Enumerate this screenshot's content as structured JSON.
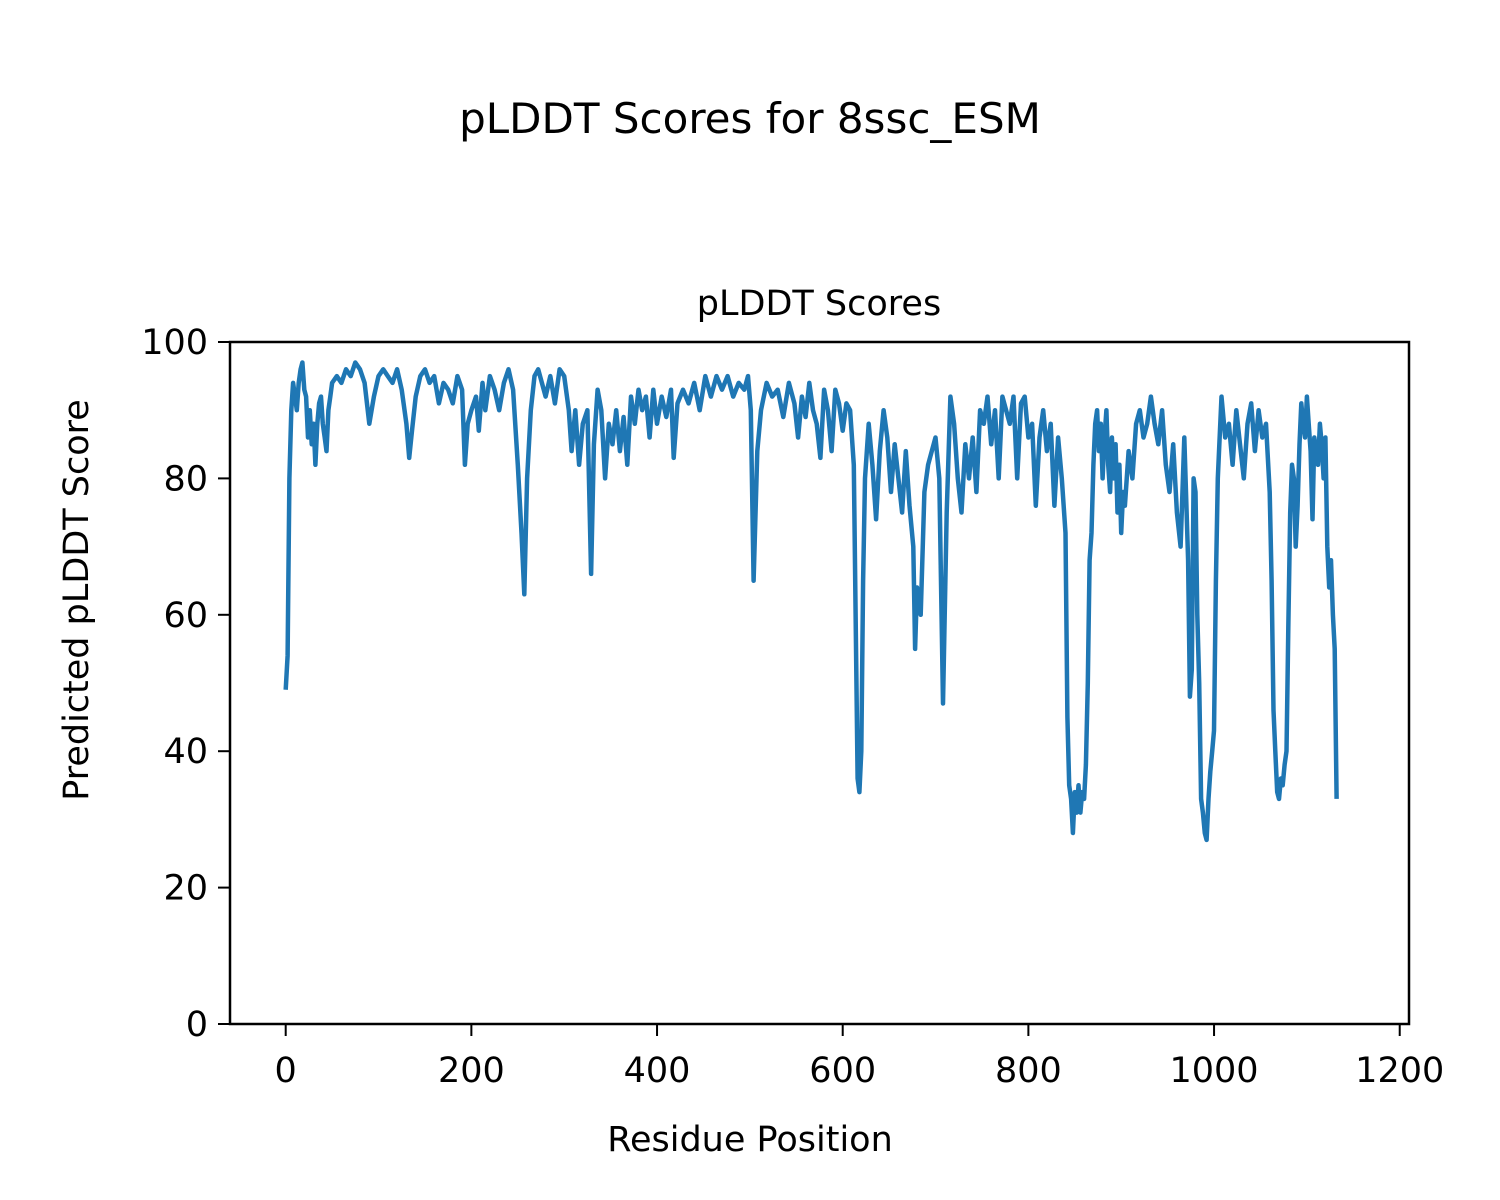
{
  "figure": {
    "suptitle": "pLDDT Scores for 8ssc_ESM"
  },
  "chart_data": {
    "type": "line",
    "title": "pLDDT Scores",
    "xlabel": "Residue Position",
    "ylabel": "Predicted pLDDT Score",
    "xlim": [
      -60,
      1210
    ],
    "ylim": [
      0,
      100
    ],
    "xticks": [
      0,
      200,
      400,
      600,
      800,
      1000,
      1200
    ],
    "yticks": [
      0,
      20,
      40,
      60,
      80,
      100
    ],
    "grid": false,
    "legend": "none",
    "series": [
      {
        "color": "#1f77b4",
        "points": [
          [
            0,
            49
          ],
          [
            2,
            54
          ],
          [
            4,
            80
          ],
          [
            6,
            90
          ],
          [
            8,
            94
          ],
          [
            10,
            92
          ],
          [
            12,
            90
          ],
          [
            14,
            94
          ],
          [
            16,
            96
          ],
          [
            18,
            97
          ],
          [
            20,
            93
          ],
          [
            22,
            92
          ],
          [
            24,
            86
          ],
          [
            26,
            90
          ],
          [
            28,
            85
          ],
          [
            30,
            88
          ],
          [
            32,
            82
          ],
          [
            34,
            88
          ],
          [
            36,
            91
          ],
          [
            38,
            92
          ],
          [
            40,
            88
          ],
          [
            42,
            86
          ],
          [
            44,
            84
          ],
          [
            46,
            90
          ],
          [
            48,
            92
          ],
          [
            50,
            94
          ],
          [
            55,
            95
          ],
          [
            60,
            94
          ],
          [
            65,
            96
          ],
          [
            70,
            95
          ],
          [
            75,
            97
          ],
          [
            80,
            96
          ],
          [
            85,
            94
          ],
          [
            90,
            88
          ],
          [
            95,
            92
          ],
          [
            100,
            95
          ],
          [
            105,
            96
          ],
          [
            110,
            95
          ],
          [
            115,
            94
          ],
          [
            120,
            96
          ],
          [
            125,
            93
          ],
          [
            130,
            88
          ],
          [
            133,
            83
          ],
          [
            136,
            87
          ],
          [
            140,
            92
          ],
          [
            145,
            95
          ],
          [
            150,
            96
          ],
          [
            155,
            94
          ],
          [
            160,
            95
          ],
          [
            165,
            91
          ],
          [
            170,
            94
          ],
          [
            175,
            93
          ],
          [
            180,
            91
          ],
          [
            185,
            95
          ],
          [
            190,
            93
          ],
          [
            193,
            82
          ],
          [
            196,
            88
          ],
          [
            200,
            90
          ],
          [
            205,
            92
          ],
          [
            208,
            87
          ],
          [
            212,
            94
          ],
          [
            215,
            90
          ],
          [
            220,
            95
          ],
          [
            225,
            93
          ],
          [
            230,
            90
          ],
          [
            235,
            94
          ],
          [
            240,
            96
          ],
          [
            245,
            93
          ],
          [
            250,
            82
          ],
          [
            254,
            72
          ],
          [
            257,
            63
          ],
          [
            260,
            80
          ],
          [
            264,
            90
          ],
          [
            268,
            95
          ],
          [
            272,
            96
          ],
          [
            276,
            94
          ],
          [
            280,
            92
          ],
          [
            285,
            95
          ],
          [
            290,
            91
          ],
          [
            295,
            96
          ],
          [
            300,
            95
          ],
          [
            305,
            90
          ],
          [
            308,
            84
          ],
          [
            312,
            90
          ],
          [
            316,
            82
          ],
          [
            320,
            88
          ],
          [
            325,
            90
          ],
          [
            329,
            66
          ],
          [
            332,
            85
          ],
          [
            336,
            93
          ],
          [
            340,
            90
          ],
          [
            344,
            80
          ],
          [
            348,
            88
          ],
          [
            352,
            85
          ],
          [
            356,
            90
          ],
          [
            360,
            84
          ],
          [
            364,
            89
          ],
          [
            368,
            82
          ],
          [
            372,
            92
          ],
          [
            376,
            88
          ],
          [
            380,
            93
          ],
          [
            384,
            90
          ],
          [
            388,
            92
          ],
          [
            392,
            86
          ],
          [
            396,
            93
          ],
          [
            400,
            88
          ],
          [
            405,
            92
          ],
          [
            410,
            89
          ],
          [
            415,
            93
          ],
          [
            418,
            83
          ],
          [
            422,
            91
          ],
          [
            428,
            93
          ],
          [
            434,
            91
          ],
          [
            440,
            94
          ],
          [
            446,
            90
          ],
          [
            452,
            95
          ],
          [
            458,
            92
          ],
          [
            464,
            95
          ],
          [
            470,
            93
          ],
          [
            476,
            95
          ],
          [
            482,
            92
          ],
          [
            488,
            94
          ],
          [
            494,
            93
          ],
          [
            498,
            95
          ],
          [
            501,
            90
          ],
          [
            504,
            65
          ],
          [
            508,
            84
          ],
          [
            512,
            90
          ],
          [
            518,
            94
          ],
          [
            524,
            92
          ],
          [
            530,
            93
          ],
          [
            536,
            89
          ],
          [
            542,
            94
          ],
          [
            548,
            91
          ],
          [
            552,
            86
          ],
          [
            556,
            92
          ],
          [
            560,
            89
          ],
          [
            564,
            94
          ],
          [
            568,
            90
          ],
          [
            572,
            88
          ],
          [
            576,
            83
          ],
          [
            580,
            93
          ],
          [
            584,
            90
          ],
          [
            588,
            84
          ],
          [
            592,
            93
          ],
          [
            596,
            91
          ],
          [
            600,
            87
          ],
          [
            604,
            91
          ],
          [
            608,
            90
          ],
          [
            612,
            82
          ],
          [
            616,
            36
          ],
          [
            618,
            34
          ],
          [
            620,
            40
          ],
          [
            622,
            65
          ],
          [
            624,
            80
          ],
          [
            628,
            88
          ],
          [
            632,
            82
          ],
          [
            636,
            74
          ],
          [
            640,
            84
          ],
          [
            644,
            90
          ],
          [
            648,
            86
          ],
          [
            652,
            78
          ],
          [
            656,
            85
          ],
          [
            660,
            80
          ],
          [
            664,
            75
          ],
          [
            668,
            84
          ],
          [
            672,
            76
          ],
          [
            676,
            70
          ],
          [
            678,
            55
          ],
          [
            680,
            64
          ],
          [
            684,
            60
          ],
          [
            688,
            78
          ],
          [
            692,
            82
          ],
          [
            696,
            84
          ],
          [
            700,
            86
          ],
          [
            704,
            80
          ],
          [
            708,
            47
          ],
          [
            712,
            75
          ],
          [
            716,
            92
          ],
          [
            720,
            88
          ],
          [
            724,
            80
          ],
          [
            728,
            75
          ],
          [
            732,
            85
          ],
          [
            736,
            80
          ],
          [
            740,
            86
          ],
          [
            744,
            78
          ],
          [
            748,
            90
          ],
          [
            752,
            88
          ],
          [
            756,
            92
          ],
          [
            760,
            85
          ],
          [
            764,
            90
          ],
          [
            768,
            80
          ],
          [
            772,
            92
          ],
          [
            776,
            90
          ],
          [
            780,
            88
          ],
          [
            784,
            92
          ],
          [
            788,
            80
          ],
          [
            792,
            91
          ],
          [
            796,
            92
          ],
          [
            800,
            86
          ],
          [
            804,
            88
          ],
          [
            808,
            76
          ],
          [
            812,
            86
          ],
          [
            816,
            90
          ],
          [
            820,
            84
          ],
          [
            824,
            88
          ],
          [
            828,
            76
          ],
          [
            832,
            86
          ],
          [
            836,
            80
          ],
          [
            840,
            72
          ],
          [
            842,
            45
          ],
          [
            844,
            35
          ],
          [
            846,
            33
          ],
          [
            848,
            28
          ],
          [
            850,
            34
          ],
          [
            852,
            31
          ],
          [
            854,
            35
          ],
          [
            856,
            31
          ],
          [
            858,
            34
          ],
          [
            860,
            33
          ],
          [
            862,
            38
          ],
          [
            864,
            50
          ],
          [
            866,
            68
          ],
          [
            868,
            72
          ],
          [
            870,
            82
          ],
          [
            872,
            88
          ],
          [
            874,
            90
          ],
          [
            876,
            84
          ],
          [
            878,
            88
          ],
          [
            880,
            80
          ],
          [
            882,
            86
          ],
          [
            884,
            90
          ],
          [
            886,
            82
          ],
          [
            888,
            78
          ],
          [
            890,
            86
          ],
          [
            892,
            80
          ],
          [
            894,
            85
          ],
          [
            896,
            75
          ],
          [
            898,
            82
          ],
          [
            900,
            72
          ],
          [
            902,
            78
          ],
          [
            904,
            76
          ],
          [
            908,
            84
          ],
          [
            912,
            80
          ],
          [
            916,
            88
          ],
          [
            920,
            90
          ],
          [
            924,
            86
          ],
          [
            928,
            88
          ],
          [
            932,
            92
          ],
          [
            936,
            88
          ],
          [
            940,
            85
          ],
          [
            944,
            90
          ],
          [
            948,
            82
          ],
          [
            952,
            78
          ],
          [
            956,
            85
          ],
          [
            960,
            75
          ],
          [
            964,
            70
          ],
          [
            968,
            86
          ],
          [
            972,
            68
          ],
          [
            974,
            48
          ],
          [
            976,
            52
          ],
          [
            978,
            80
          ],
          [
            980,
            78
          ],
          [
            982,
            60
          ],
          [
            984,
            50
          ],
          [
            986,
            33
          ],
          [
            988,
            31
          ],
          [
            990,
            28
          ],
          [
            992,
            27
          ],
          [
            994,
            33
          ],
          [
            996,
            37
          ],
          [
            998,
            40
          ],
          [
            1000,
            43
          ],
          [
            1002,
            65
          ],
          [
            1004,
            80
          ],
          [
            1008,
            92
          ],
          [
            1012,
            86
          ],
          [
            1016,
            88
          ],
          [
            1020,
            82
          ],
          [
            1024,
            90
          ],
          [
            1028,
            85
          ],
          [
            1032,
            80
          ],
          [
            1036,
            88
          ],
          [
            1040,
            91
          ],
          [
            1044,
            84
          ],
          [
            1048,
            90
          ],
          [
            1052,
            86
          ],
          [
            1056,
            88
          ],
          [
            1060,
            78
          ],
          [
            1062,
            65
          ],
          [
            1064,
            46
          ],
          [
            1066,
            40
          ],
          [
            1068,
            34
          ],
          [
            1070,
            33
          ],
          [
            1072,
            36
          ],
          [
            1074,
            35
          ],
          [
            1076,
            38
          ],
          [
            1078,
            40
          ],
          [
            1080,
            58
          ],
          [
            1082,
            75
          ],
          [
            1084,
            82
          ],
          [
            1086,
            80
          ],
          [
            1088,
            70
          ],
          [
            1090,
            76
          ],
          [
            1092,
            85
          ],
          [
            1094,
            91
          ],
          [
            1096,
            88
          ],
          [
            1098,
            86
          ],
          [
            1100,
            92
          ],
          [
            1102,
            88
          ],
          [
            1104,
            84
          ],
          [
            1106,
            74
          ],
          [
            1108,
            86
          ],
          [
            1110,
            84
          ],
          [
            1112,
            82
          ],
          [
            1114,
            88
          ],
          [
            1116,
            85
          ],
          [
            1118,
            80
          ],
          [
            1120,
            86
          ],
          [
            1122,
            70
          ],
          [
            1124,
            64
          ],
          [
            1126,
            68
          ],
          [
            1128,
            60
          ],
          [
            1130,
            55
          ],
          [
            1132,
            33
          ]
        ]
      }
    ]
  }
}
